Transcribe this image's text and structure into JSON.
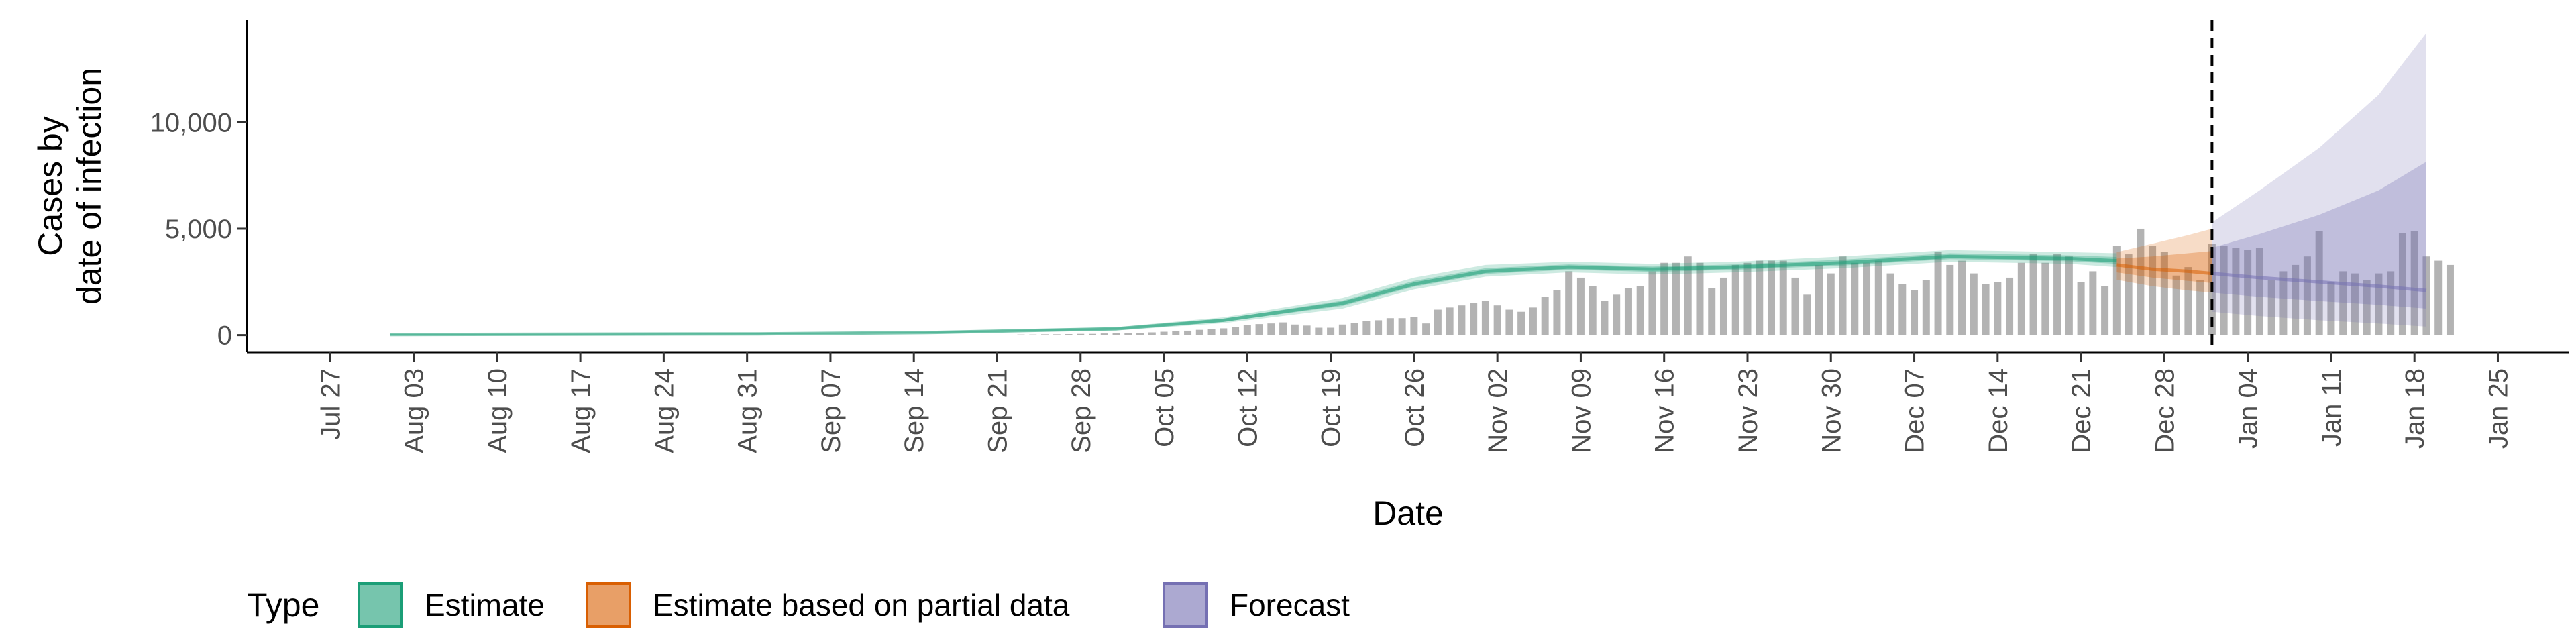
{
  "chart_data": {
    "type": "bar",
    "title": "",
    "xlabel": "Date",
    "ylabel_lines": [
      "Cases by",
      "date of infection"
    ],
    "ylim": [
      -800,
      14800
    ],
    "y_ticks": [
      0,
      5000,
      10000
    ],
    "y_tick_labels": [
      "0",
      "5,000",
      "10,000"
    ],
    "x_ticks": [
      "2020-07-27",
      "2020-08-03",
      "2020-08-10",
      "2020-08-17",
      "2020-08-24",
      "2020-08-31",
      "2020-09-07",
      "2020-09-14",
      "2020-09-21",
      "2020-09-28",
      "2020-10-05",
      "2020-10-12",
      "2020-10-19",
      "2020-10-26",
      "2020-11-02",
      "2020-11-09",
      "2020-11-16",
      "2020-11-23",
      "2020-11-30",
      "2020-12-07",
      "2020-12-14",
      "2020-12-21",
      "2020-12-28",
      "2021-01-04",
      "2021-01-11",
      "2021-01-18",
      "2021-01-25"
    ],
    "x_tick_labels": [
      "Jul 27",
      "Aug 03",
      "Aug 10",
      "Aug 17",
      "Aug 24",
      "Aug 31",
      "Sep 07",
      "Sep 14",
      "Sep 21",
      "Sep 28",
      "Oct 05",
      "Oct 12",
      "Oct 19",
      "Oct 26",
      "Nov 02",
      "Nov 09",
      "Nov 16",
      "Nov 23",
      "Nov 30",
      "Dec 07",
      "Dec 14",
      "Dec 21",
      "Dec 28",
      "Jan 04",
      "Jan 11",
      "Jan 18",
      "Jan 25"
    ],
    "forecast_date": "2021-01-01",
    "bars": {
      "start_date": "2020-08-01",
      "values": [
        10,
        10,
        10,
        10,
        10,
        10,
        10,
        10,
        10,
        10,
        10,
        10,
        10,
        10,
        10,
        10,
        10,
        10,
        10,
        10,
        10,
        10,
        10,
        10,
        10,
        10,
        10,
        10,
        10,
        10,
        10,
        10,
        10,
        10,
        10,
        10,
        10,
        10,
        10,
        10,
        10,
        10,
        10,
        10,
        10,
        10,
        10,
        10,
        10,
        10,
        20,
        20,
        20,
        30,
        30,
        40,
        40,
        50,
        60,
        60,
        80,
        90,
        110,
        110,
        130,
        160,
        180,
        210,
        250,
        280,
        320,
        390,
        460,
        520,
        550,
        600,
        500,
        450,
        350,
        350,
        500,
        580,
        650,
        700,
        800,
        800,
        850,
        550,
        1200,
        1300,
        1400,
        1500,
        1600,
        1400,
        1200,
        1100,
        1300,
        1800,
        2100,
        3000,
        2700,
        2300,
        1600,
        1900,
        2200,
        2300,
        3000,
        3400,
        3400,
        3700,
        3400,
        2200,
        2700,
        3300,
        3400,
        3500,
        3500,
        3500,
        2700,
        1900,
        3300,
        2900,
        3700,
        3400,
        3400,
        3500,
        2900,
        2400,
        2100,
        2600,
        3900,
        3300,
        3500,
        2900,
        2400,
        2500,
        2700,
        3400,
        3800,
        3400,
        3800,
        3700,
        2500,
        3000,
        2300,
        4200,
        3800,
        5000,
        4200,
        3900,
        2800,
        3200,
        2600,
        4300,
        4200,
        4100,
        4000,
        4100,
        2600,
        3000,
        3300,
        3700,
        4900,
        2500,
        3000,
        2900,
        2600,
        2900,
        3000,
        4800,
        4900,
        3700,
        3500,
        3300
      ]
    },
    "series": [
      {
        "name": "Estimate",
        "color": "#1B9E77",
        "x": [
          "2020-08-01",
          "2020-08-15",
          "2020-09-01",
          "2020-09-15",
          "2020-10-01",
          "2020-10-10",
          "2020-10-20",
          "2020-10-26",
          "2020-11-01",
          "2020-11-08",
          "2020-11-15",
          "2020-11-22",
          "2020-12-01",
          "2020-12-10",
          "2020-12-20",
          "2020-12-24"
        ],
        "median": [
          30,
          40,
          60,
          120,
          300,
          700,
          1500,
          2400,
          3000,
          3200,
          3100,
          3200,
          3400,
          3700,
          3600,
          3500
        ],
        "lower": [
          0,
          10,
          30,
          80,
          220,
          560,
          1250,
          2150,
          2750,
          2950,
          2850,
          2950,
          3150,
          3450,
          3350,
          3200
        ],
        "upper": [
          60,
          70,
          100,
          170,
          380,
          840,
          1750,
          2700,
          3300,
          3450,
          3350,
          3450,
          3700,
          4000,
          3900,
          3850
        ]
      },
      {
        "name": "Estimate based on partial data",
        "color": "#D95F02",
        "x": [
          "2020-12-24",
          "2020-12-27",
          "2020-12-30",
          "2021-01-01"
        ],
        "median": [
          3300,
          3100,
          3000,
          2900
        ],
        "lower": [
          2600,
          2300,
          2100,
          2000
        ],
        "upper": [
          3900,
          4300,
          4700,
          5000
        ]
      },
      {
        "name": "Forecast",
        "color": "#7570B3",
        "x": [
          "2021-01-01",
          "2021-01-05",
          "2021-01-10",
          "2021-01-15",
          "2021-01-19"
        ],
        "median": [
          2900,
          2700,
          2500,
          2300,
          2100
        ],
        "lower": [
          1100,
          900,
          700,
          550,
          400
        ],
        "upper": [
          5300,
          6800,
          8800,
          11300,
          14200
        ]
      }
    ],
    "legend": {
      "title": "Type",
      "position": "bottom",
      "entries": [
        "Estimate",
        "Estimate based on partial data",
        "Forecast"
      ]
    },
    "grid": false
  }
}
